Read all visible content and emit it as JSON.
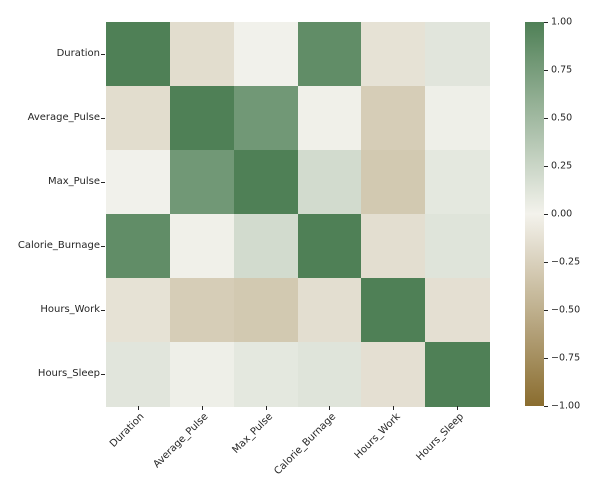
{
  "figure": {
    "background": "#ffffff",
    "text_color": "#262626"
  },
  "chart_data": {
    "type": "heatmap",
    "title": "",
    "xlabel": "",
    "ylabel": "",
    "legend_position": "colorbar-right",
    "grid": false,
    "categories": [
      "Duration",
      "Average_Pulse",
      "Max_Pulse",
      "Calorie_Burnage",
      "Hours_Work",
      "Hours_Sleep"
    ],
    "series": [
      {
        "name": "Duration",
        "values": [
          1.0,
          -0.16,
          0.01,
          0.89,
          -0.12,
          0.11
        ]
      },
      {
        "name": "Average_Pulse",
        "values": [
          -0.16,
          1.0,
          0.79,
          0.02,
          -0.28,
          0.03
        ]
      },
      {
        "name": "Max_Pulse",
        "values": [
          0.01,
          0.79,
          1.0,
          0.2,
          -0.31,
          0.09
        ]
      },
      {
        "name": "Calorie_Burnage",
        "values": [
          0.89,
          0.02,
          0.2,
          1.0,
          -0.15,
          0.12
        ]
      },
      {
        "name": "Hours_Work",
        "values": [
          -0.12,
          -0.28,
          -0.31,
          -0.15,
          1.0,
          -0.14
        ]
      },
      {
        "name": "Hours_Sleep",
        "values": [
          0.11,
          0.03,
          0.09,
          0.12,
          -0.14,
          1.0
        ]
      }
    ],
    "vmin": -1.0,
    "vmax": 1.0,
    "colormap": {
      "negative_end": "#8a6d2f",
      "center": "#f3f2ec",
      "positive_end": "#4f8056"
    },
    "colorbar_ticks": [
      {
        "value": 1.0,
        "label": "1.00"
      },
      {
        "value": 0.75,
        "label": "0.75"
      },
      {
        "value": 0.5,
        "label": "0.50"
      },
      {
        "value": 0.25,
        "label": "0.25"
      },
      {
        "value": 0.0,
        "label": "0.00"
      },
      {
        "value": -0.25,
        "label": "−0.25"
      },
      {
        "value": -0.5,
        "label": "−0.50"
      },
      {
        "value": -0.75,
        "label": "−0.75"
      },
      {
        "value": -1.0,
        "label": "−1.00"
      }
    ]
  }
}
